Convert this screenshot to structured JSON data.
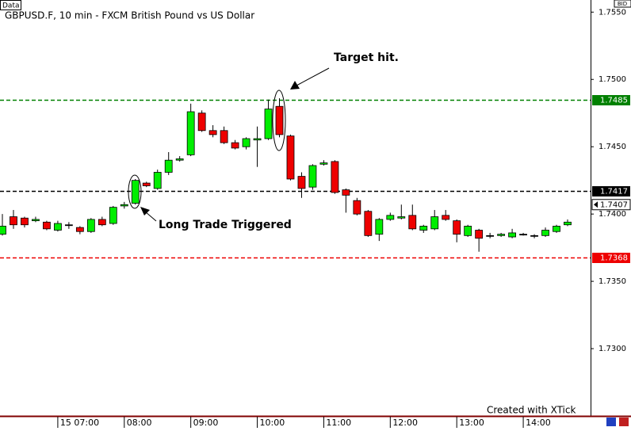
{
  "chart_data": {
    "type": "candlestick",
    "title": "GBPUSD.F, 10 min - FXCM British Pound vs US Dollar",
    "tab": "Data",
    "price_side": "BID",
    "footer": "Created with XTick",
    "categories": [
      null,
      null,
      null,
      null,
      null,
      "15 07:00",
      null,
      null,
      null,
      null,
      null,
      "08:00",
      null,
      null,
      null,
      null,
      null,
      "09:00",
      null,
      null,
      null,
      null,
      null,
      "10:00",
      null,
      null,
      null,
      null,
      null,
      "11:00",
      null,
      null,
      null,
      null,
      null,
      "12:00",
      null,
      null,
      null,
      null,
      null,
      "13:00",
      null,
      null,
      null,
      null,
      null,
      "14:00",
      null,
      null,
      null,
      null
    ],
    "open": [
      1.7385,
      1.7398,
      1.7397,
      1.7395,
      1.7394,
      1.7388,
      1.7392,
      1.739,
      1.7387,
      1.7396,
      1.7393,
      1.7406,
      1.7408,
      1.7423,
      1.7419,
      1.7431,
      1.744,
      1.7444,
      1.7475,
      1.7462,
      1.7462,
      1.7453,
      1.745,
      1.7455,
      1.7456,
      1.748,
      1.7458,
      1.7428,
      1.742,
      1.7437,
      1.7439,
      1.7418,
      1.741,
      1.7402,
      1.7385,
      1.7396,
      1.7397,
      1.7399,
      1.7388,
      1.7389,
      1.7399,
      1.7395,
      1.7384,
      1.7388,
      1.7384,
      1.7384,
      1.7383,
      1.7385,
      1.7384,
      1.7384,
      1.7387,
      1.7392
    ],
    "high": [
      1.74,
      1.7403,
      1.7398,
      1.7398,
      1.7395,
      1.7395,
      1.7394,
      1.7391,
      1.7397,
      1.7398,
      1.7406,
      1.7409,
      1.7426,
      1.7424,
      1.7433,
      1.7446,
      1.7443,
      1.7482,
      1.7477,
      1.7466,
      1.7465,
      1.7455,
      1.7457,
      1.7465,
      1.7485,
      1.7486,
      1.7459,
      1.7431,
      1.7437,
      1.744,
      1.744,
      1.7419,
      1.7412,
      1.7403,
      1.7397,
      1.7401,
      1.7407,
      1.7407,
      1.7392,
      1.7403,
      1.7403,
      1.7396,
      1.7392,
      1.7389,
      1.7386,
      1.7386,
      1.7389,
      1.7386,
      1.7385,
      1.739,
      1.7392,
      1.7396
    ],
    "low": [
      1.7384,
      1.7389,
      1.739,
      1.7394,
      1.7388,
      1.7387,
      1.7389,
      1.7385,
      1.7386,
      1.7391,
      1.7392,
      1.7404,
      1.7407,
      1.742,
      1.7418,
      1.7429,
      1.7439,
      1.7443,
      1.7461,
      1.7457,
      1.7452,
      1.7448,
      1.7448,
      1.7435,
      1.7455,
      1.7457,
      1.7425,
      1.7412,
      1.7418,
      1.7436,
      1.7415,
      1.7401,
      1.7399,
      1.7383,
      1.738,
      1.7395,
      1.7396,
      1.7388,
      1.7386,
      1.7388,
      1.7395,
      1.7379,
      1.7383,
      1.7372,
      1.7382,
      1.7383,
      1.7382,
      1.7384,
      1.7382,
      1.7383,
      1.7386,
      1.7391
    ],
    "close": [
      1.7391,
      1.7392,
      1.7392,
      1.7396,
      1.7389,
      1.7393,
      1.7392,
      1.7387,
      1.7396,
      1.7392,
      1.7405,
      1.7407,
      1.7425,
      1.7421,
      1.7431,
      1.744,
      1.7441,
      1.7476,
      1.7462,
      1.7459,
      1.7453,
      1.7449,
      1.7456,
      1.7456,
      1.7478,
      1.7459,
      1.7426,
      1.7419,
      1.7436,
      1.7438,
      1.7416,
      1.7414,
      1.74,
      1.7384,
      1.7396,
      1.7399,
      1.7398,
      1.7389,
      1.7391,
      1.7398,
      1.7396,
      1.7385,
      1.7391,
      1.7382,
      1.7384,
      1.7385,
      1.7386,
      1.7385,
      1.7384,
      1.7388,
      1.7391,
      1.7394
    ],
    "up_color": "#00ee00",
    "down_color": "#ee0000",
    "ylim": [
      1.725,
      1.7559
    ],
    "yticks": [
      {
        "value": 1.755,
        "label": "1.7550"
      },
      {
        "value": 1.75,
        "label": "1.7500"
      },
      {
        "value": 1.745,
        "label": "1.7450"
      },
      {
        "value": 1.74,
        "label": "1.7400"
      },
      {
        "value": 1.735,
        "label": "1.7350"
      },
      {
        "value": 1.73,
        "label": "1.7300"
      }
    ],
    "levels": [
      {
        "value": 1.7485,
        "color": "#008000"
      },
      {
        "value": 1.7417,
        "color": "#000000"
      },
      {
        "value": 1.7368,
        "color": "#ee0000"
      }
    ],
    "last_price": 1.7407,
    "annotations": [
      "Target hit.",
      "Long Trade Triggered"
    ]
  }
}
